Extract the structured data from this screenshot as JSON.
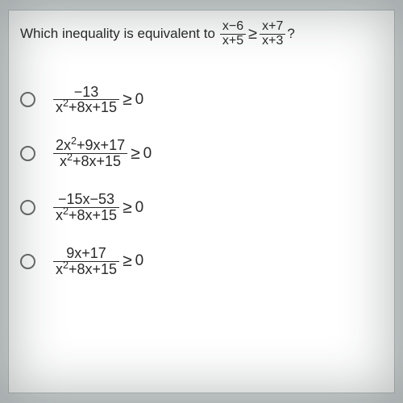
{
  "question": {
    "prompt": "Which inequality is equivalent to",
    "left_num": "x−6",
    "left_den": "x+5",
    "op": "≥",
    "right_num": "x+7",
    "right_den": "x+3",
    "suffix": "?"
  },
  "options": [
    {
      "num_plain": "−13",
      "num_has_sq": false,
      "den_prefix": "x",
      "den_rest": "+8x+15",
      "op": "≥",
      "rhs": "0"
    },
    {
      "num_prefix": "2x",
      "num_rest": "+9x+17",
      "num_has_sq": true,
      "den_prefix": "x",
      "den_rest": "+8x+15",
      "op": "≥",
      "rhs": "0"
    },
    {
      "num_plain": "−15x−53",
      "num_has_sq": false,
      "den_prefix": "x",
      "den_rest": "+8x+15",
      "op": "≥",
      "rhs": "0"
    },
    {
      "num_plain": "9x+17",
      "num_has_sq": false,
      "den_prefix": "x",
      "den_rest": "+8x+15",
      "op": "≥",
      "rhs": "0"
    }
  ],
  "colors": {
    "page_bg": "#d8dcdd",
    "panel_bg": "#ffffff",
    "text": "#2a2a2a",
    "radio_border": "#6b6b6b"
  }
}
